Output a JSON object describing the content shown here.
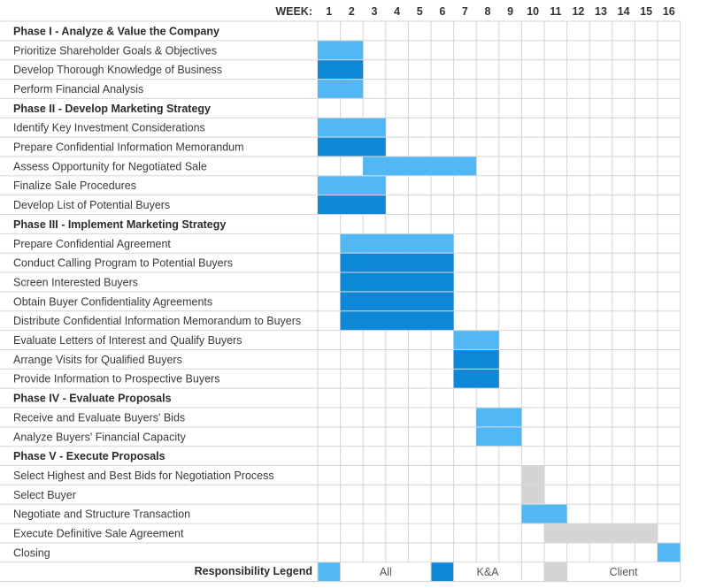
{
  "chart_data": {
    "type": "gantt",
    "week_header": "WEEK:",
    "weeks": [
      "1",
      "2",
      "3",
      "4",
      "5",
      "6",
      "7",
      "8",
      "9",
      "10",
      "11",
      "12",
      "13",
      "14",
      "15",
      "16"
    ],
    "colors": {
      "All": "#52b8f5",
      "K&A": "#0e88d6",
      "Client": "#d4d4d4"
    },
    "rows": [
      {
        "label": "Phase I - Analyze & Value the Company",
        "phase": true
      },
      {
        "label": "Prioritize Shareholder Goals & Objectives",
        "start": 1,
        "end": 2,
        "resp": "All"
      },
      {
        "label": "Develop Thorough Knowledge of Business",
        "start": 1,
        "end": 2,
        "resp": "K&A"
      },
      {
        "label": "Perform Financial Analysis",
        "start": 1,
        "end": 2,
        "resp": "All"
      },
      {
        "label": "Phase II - Develop Marketing Strategy",
        "phase": true
      },
      {
        "label": "Identify Key Investment Considerations",
        "start": 1,
        "end": 3,
        "resp": "All"
      },
      {
        "label": "Prepare Confidential Information Memorandum",
        "start": 1,
        "end": 3,
        "resp": "K&A"
      },
      {
        "label": "Assess Opportunity for Negotiated Sale",
        "start": 3,
        "end": 7,
        "resp": "All"
      },
      {
        "label": "Finalize Sale Procedures",
        "start": 1,
        "end": 3,
        "resp": "All"
      },
      {
        "label": "Develop List of Potential Buyers",
        "start": 1,
        "end": 3,
        "resp": "K&A"
      },
      {
        "label": "Phase III - Implement Marketing Strategy",
        "phase": true
      },
      {
        "label": "Prepare Confidential Agreement",
        "start": 2,
        "end": 6,
        "resp": "All"
      },
      {
        "label": "Conduct Calling Program to Potential Buyers",
        "start": 2,
        "end": 6,
        "resp": "K&A"
      },
      {
        "label": "Screen Interested Buyers",
        "start": 2,
        "end": 6,
        "resp": "K&A"
      },
      {
        "label": "Obtain Buyer Confidentiality Agreements",
        "start": 2,
        "end": 6,
        "resp": "K&A"
      },
      {
        "label": "Distribute Confidential Information Memorandum to Buyers",
        "start": 2,
        "end": 6,
        "resp": "K&A"
      },
      {
        "label": "Evaluate Letters of Interest and Qualify Buyers",
        "start": 7,
        "end": 8,
        "resp": "All"
      },
      {
        "label": "Arrange Visits for Qualified Buyers",
        "start": 7,
        "end": 8,
        "resp": "K&A"
      },
      {
        "label": "Provide Information to Prospective Buyers",
        "start": 7,
        "end": 8,
        "resp": "K&A"
      },
      {
        "label": "Phase IV - Evaluate Proposals",
        "phase": true
      },
      {
        "label": "Receive and Evaluate Buyers' Bids",
        "start": 8,
        "end": 9,
        "resp": "All"
      },
      {
        "label": "Analyze Buyers' Financial Capacity",
        "start": 8,
        "end": 9,
        "resp": "All"
      },
      {
        "label": "Phase V - Execute Proposals",
        "phase": true
      },
      {
        "label": "Select Highest and Best Bids for Negotiation Process",
        "start": 10,
        "end": 10,
        "resp": "Client"
      },
      {
        "label": "Select Buyer",
        "start": 10,
        "end": 10,
        "resp": "Client"
      },
      {
        "label": "Negotiate and Structure Transaction",
        "start": 10,
        "end": 11,
        "resp": "All"
      },
      {
        "label": "Execute Definitive Sale Agreement",
        "start": 11,
        "end": 15,
        "resp": "Client"
      },
      {
        "label": "Closing",
        "start": 16,
        "end": 16,
        "resp": "All"
      }
    ],
    "legend": {
      "title": "Responsibility Legend",
      "items": [
        {
          "key": "All",
          "label": "All"
        },
        {
          "key": "K&A",
          "label": "K&A"
        },
        {
          "key": "Client",
          "label": "Client"
        }
      ]
    }
  }
}
